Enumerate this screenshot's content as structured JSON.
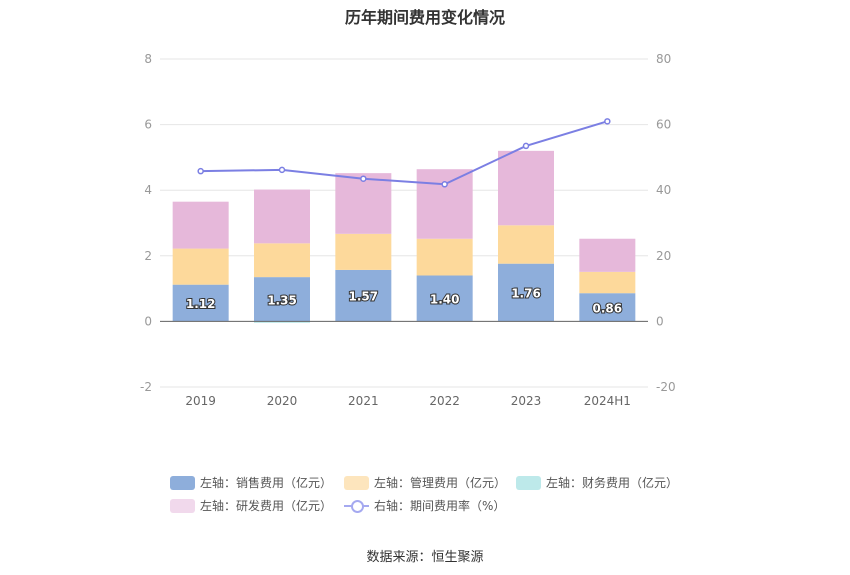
{
  "chart_data": {
    "type": "bar",
    "title": "历年期间费用变化情况",
    "categories": [
      "2019",
      "2020",
      "2021",
      "2022",
      "2023",
      "2024H1"
    ],
    "left_axis": {
      "ylim": [
        -2,
        8
      ],
      "ticks": [
        "-2",
        "0",
        "2",
        "4",
        "6",
        "8"
      ]
    },
    "right_axis": {
      "ylim": [
        -20,
        80
      ],
      "ticks": [
        "-20",
        "0",
        "20",
        "40",
        "60",
        "80"
      ]
    },
    "series": [
      {
        "name": "左轴：销售费用（亿元）",
        "axis": "left",
        "stack": true,
        "color": "#8eaedb",
        "values": [
          1.12,
          1.35,
          1.57,
          1.4,
          1.76,
          0.86
        ],
        "labels": [
          "1.12",
          "1.35",
          "1.57",
          "1.40",
          "1.76",
          "0.86"
        ]
      },
      {
        "name": "左轴：管理费用（亿元）",
        "axis": "left",
        "stack": true,
        "color": "#fdd99b",
        "values": [
          1.1,
          1.03,
          1.1,
          1.12,
          1.17,
          0.65
        ]
      },
      {
        "name": "左轴：财务费用（亿元）",
        "axis": "left",
        "stack": true,
        "color": "#bde9ea",
        "values": [
          0.0,
          -0.02,
          0.0,
          0.0,
          0.0,
          0.0
        ]
      },
      {
        "name": "左轴：研发费用（亿元）",
        "axis": "left",
        "stack": true,
        "color": "#e6b8da",
        "values": [
          1.43,
          1.64,
          1.85,
          2.12,
          2.27,
          1.01
        ]
      },
      {
        "name": "右轴：期间费用率（%）",
        "axis": "right",
        "type": "line",
        "color": "#7b7fe3",
        "values": [
          45.8,
          46.2,
          43.5,
          41.8,
          53.5,
          61.0
        ]
      }
    ],
    "legend_position": "bottom"
  },
  "source": "数据来源：恒生聚源"
}
